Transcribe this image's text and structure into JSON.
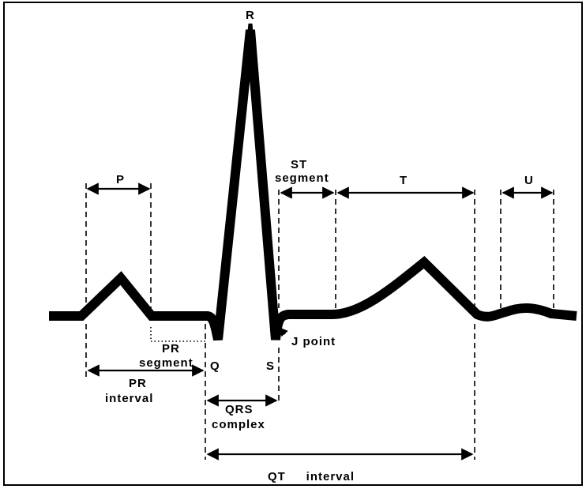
{
  "labels": {
    "r": "R",
    "p": "P",
    "st_line1": "ST",
    "st_line2": "segment",
    "t": "T",
    "u": "U",
    "pr_seg_line1": "PR",
    "pr_seg_line2": "segment",
    "q": "Q",
    "s": "S",
    "j_point": "J  point",
    "pr_int_line1": "PR",
    "pr_int_line2": "interval",
    "qrs_line1": "QRS",
    "qrs_line2": "complex",
    "qt_interval": "QT     interval"
  }
}
